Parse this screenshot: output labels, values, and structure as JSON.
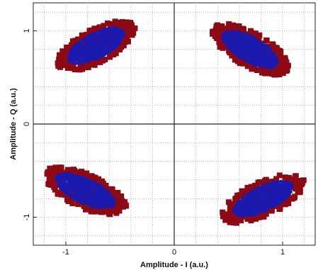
{
  "chart_data": {
    "type": "scatter",
    "xlabel": "Amplitude - I (a.u.)",
    "ylabel": "Amplitude - Q (a.u.)",
    "xlim": [
      -1.3,
      1.3
    ],
    "ylim": [
      -1.3,
      1.3
    ],
    "x_ticks": [
      -1,
      0,
      1
    ],
    "x_tick_labels": [
      "-1",
      "0",
      "1"
    ],
    "y_ticks": [
      -1,
      0,
      1
    ],
    "y_tick_labels": [
      "-1",
      "0",
      "1"
    ],
    "grid": true,
    "grid_style": "dotted",
    "colors": {
      "outer": "#8b0a14",
      "inner": "#1a1ab0",
      "axes": "#222222",
      "grid": "#9a9a9a"
    },
    "clusters": [
      {
        "center": [
          -0.72,
          0.84
        ],
        "angle_deg": 33,
        "semi_major": 0.35,
        "semi_minor": 0.15
      },
      {
        "center": [
          0.7,
          0.8
        ],
        "angle_deg": -35,
        "semi_major": 0.35,
        "semi_minor": 0.15
      },
      {
        "center": [
          -0.82,
          -0.72
        ],
        "angle_deg": -30,
        "semi_major": 0.36,
        "semi_minor": 0.15
      },
      {
        "center": [
          0.82,
          -0.8
        ],
        "angle_deg": 30,
        "semi_major": 0.36,
        "semi_minor": 0.15
      }
    ]
  }
}
